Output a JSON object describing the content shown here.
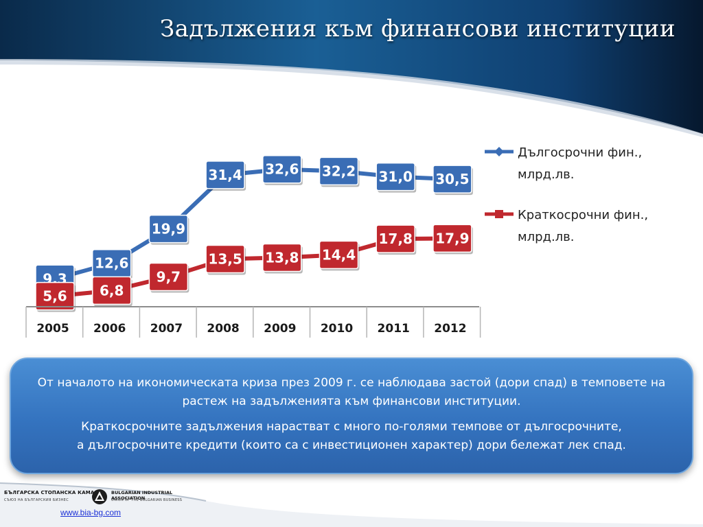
{
  "header": {
    "title": "Задължения към финансови институции"
  },
  "chart_data": {
    "type": "line",
    "categories": [
      "2005",
      "2006",
      "2007",
      "2008",
      "2009",
      "2010",
      "2011",
      "2012"
    ],
    "series": [
      {
        "name": "Дългосрочни фин., млрд.лв.",
        "legend_lines": [
          "Дългосрочни фин.,",
          "млрд.лв."
        ],
        "color": "#3a6db5",
        "values": [
          9.3,
          12.6,
          19.9,
          31.4,
          32.6,
          32.2,
          31.0,
          30.5
        ],
        "labels": [
          "9,3",
          "12,6",
          "19,9",
          "31,4",
          "32,6",
          "32,2",
          "31,0",
          "30,5"
        ]
      },
      {
        "name": "Краткосрочни фин., млрд.лв.",
        "legend_lines": [
          "Краткосрочни фин.,",
          "млрд.лв."
        ],
        "color": "#c0282e",
        "values": [
          5.6,
          6.8,
          9.7,
          13.5,
          13.8,
          14.4,
          17.8,
          17.9
        ],
        "labels": [
          "5,6",
          "6,8",
          "9,7",
          "13,5",
          "13,8",
          "14,4",
          "17,8",
          "17,9"
        ]
      }
    ],
    "legend_position": "right",
    "grid": false,
    "ylim": [
      0,
      40
    ]
  },
  "info": {
    "paragraph1": "От началото на икономическата криза през 2009 г. се наблюдава застой (дори спад) в темповете на растеж на задълженията към финансови институции.",
    "paragraph2_line1": "Краткосрочните задължения нарастват с много по-голями темпове от дългосрочните,",
    "paragraph2_line2": "а дългосрочните кредити (които са с инвестиционен характер) дори бележат  лек спад."
  },
  "footer": {
    "logo_left": "БЪЛГАРСКА СТОПАНСКА КАМАРА",
    "logo_left_sub": "СЪЮЗ НА БЪЛГАРСКИЯ БИЗНЕС",
    "logo_right": "BULGARIAN INDUSTRIAL ASSOCIATION",
    "logo_right_sub": "UNION OF THE BULGARIAN BUSINESS",
    "url": "www.bia-bg.com"
  }
}
